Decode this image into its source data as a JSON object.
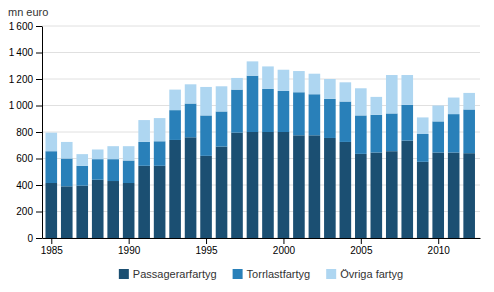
{
  "chart_data": {
    "type": "bar",
    "stacked": true,
    "ylabel": "mn euro",
    "x": [
      1985,
      1986,
      1987,
      1988,
      1989,
      1990,
      1991,
      1992,
      1993,
      1994,
      1995,
      1996,
      1997,
      1998,
      1999,
      2000,
      2001,
      2002,
      2003,
      2004,
      2005,
      2006,
      2007,
      2008,
      2009,
      2010,
      2011,
      2012
    ],
    "series": [
      {
        "name": "Passagerarfartyg",
        "color": "#1b4f72",
        "values": [
          415,
          390,
          395,
          440,
          430,
          415,
          545,
          545,
          740,
          760,
          620,
          690,
          795,
          800,
          800,
          800,
          775,
          775,
          755,
          725,
          635,
          645,
          655,
          735,
          575,
          645,
          645,
          640
        ]
      },
      {
        "name": "Torrlastfartyg",
        "color": "#2980b9",
        "values": [
          240,
          210,
          150,
          155,
          165,
          170,
          180,
          185,
          225,
          255,
          305,
          265,
          325,
          425,
          325,
          310,
          325,
          310,
          295,
          305,
          290,
          285,
          285,
          270,
          210,
          235,
          290,
          330
        ]
      },
      {
        "name": "Övriga fartyg",
        "color": "#aed6f1",
        "values": [
          140,
          125,
          88,
          73,
          98,
          108,
          165,
          175,
          155,
          145,
          215,
          190,
          88,
          108,
          170,
          160,
          160,
          155,
          150,
          145,
          205,
          135,
          290,
          225,
          125,
          120,
          125,
          125
        ]
      }
    ],
    "xlim": [
      1984.4,
      2012.7
    ],
    "xticks": [
      1985,
      1990,
      1995,
      2000,
      2005,
      2010
    ],
    "ylim": [
      0,
      1600
    ],
    "yticks": [
      0,
      200,
      400,
      600,
      800,
      {
        "value": 1000,
        "label": "1 000"
      },
      {
        "value": 1200,
        "label": "1 200"
      },
      {
        "value": 1400,
        "label": "1 400"
      },
      {
        "value": 1600,
        "label": "1 600"
      }
    ],
    "grid": true,
    "legend": "bottom"
  }
}
